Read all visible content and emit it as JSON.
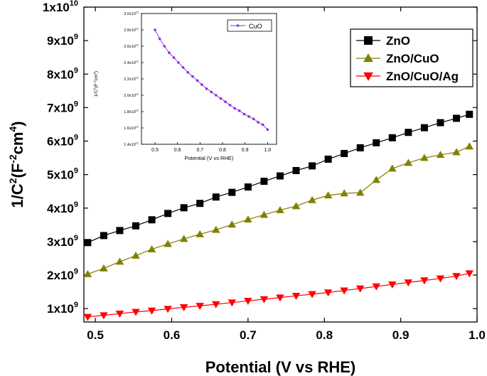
{
  "chart_data": [
    {
      "type": "line",
      "title": "",
      "xlabel": "Potential (V vs RHE)",
      "ylabel_parts": [
        "1/C",
        "2",
        "(F",
        "-2",
        "cm",
        "4",
        ")"
      ],
      "xlim": [
        0.485,
        1.0
      ],
      "ylim": [
        600000000.0,
        10000000000.0
      ],
      "xticks": [
        {
          "v": 0.5,
          "label": "0.5"
        },
        {
          "v": 0.6,
          "label": "0.6"
        },
        {
          "v": 0.7,
          "label": "0.7"
        },
        {
          "v": 0.8,
          "label": "0.8"
        },
        {
          "v": 0.9,
          "label": "0.9"
        },
        {
          "v": 1.0,
          "label": "1.0"
        }
      ],
      "yticks": [
        {
          "v": 1000000000.0,
          "mant": "1x10",
          "exp": "9"
        },
        {
          "v": 2000000000.0,
          "mant": "2x10",
          "exp": "9"
        },
        {
          "v": 3000000000.0,
          "mant": "3x10",
          "exp": "9"
        },
        {
          "v": 4000000000.0,
          "mant": "4x10",
          "exp": "9"
        },
        {
          "v": 5000000000.0,
          "mant": "5x10",
          "exp": "9"
        },
        {
          "v": 6000000000.0,
          "mant": "6x10",
          "exp": "9"
        },
        {
          "v": 7000000000.0,
          "mant": "7x10",
          "exp": "9"
        },
        {
          "v": 8000000000.0,
          "mant": "8x10",
          "exp": "9"
        },
        {
          "v": 9000000000.0,
          "mant": "9x10",
          "exp": "9"
        },
        {
          "v": 10000000000.0,
          "mant": "1x10",
          "exp": "10"
        }
      ],
      "x": [
        0.49,
        0.511,
        0.532,
        0.553,
        0.574,
        0.595,
        0.616,
        0.637,
        0.658,
        0.679,
        0.7,
        0.721,
        0.742,
        0.763,
        0.784,
        0.805,
        0.826,
        0.847,
        0.868,
        0.889,
        0.91,
        0.931,
        0.952,
        0.973,
        0.99
      ],
      "series": [
        {
          "name": "ZnO",
          "color": "#000000",
          "marker": "square",
          "values": [
            2970000000.0,
            3180000000.0,
            3330000000.0,
            3470000000.0,
            3650000000.0,
            3840000000.0,
            4010000000.0,
            4140000000.0,
            4330000000.0,
            4470000000.0,
            4630000000.0,
            4800000000.0,
            4960000000.0,
            5120000000.0,
            5260000000.0,
            5460000000.0,
            5630000000.0,
            5800000000.0,
            5950000000.0,
            6100000000.0,
            6260000000.0,
            6400000000.0,
            6550000000.0,
            6680000000.0,
            6800000000.0
          ]
        },
        {
          "name": "ZnO/CuO",
          "color": "#808000",
          "marker": "triangle-up",
          "values": [
            2030000000.0,
            2200000000.0,
            2400000000.0,
            2580000000.0,
            2770000000.0,
            2930000000.0,
            3080000000.0,
            3220000000.0,
            3350000000.0,
            3510000000.0,
            3660000000.0,
            3800000000.0,
            3940000000.0,
            4060000000.0,
            4240000000.0,
            4380000000.0,
            4440000000.0,
            4460000000.0,
            4840000000.0,
            5180000000.0,
            5350000000.0,
            5500000000.0,
            5590000000.0,
            5670000000.0,
            5840000000.0
          ]
        },
        {
          "name": "ZnO/CuO/Ag",
          "color": "#ff0000",
          "marker": "triangle-down",
          "values": [
            750000000.0,
            800000000.0,
            850000000.0,
            900000000.0,
            940000000.0,
            990000000.0,
            1040000000.0,
            1080000000.0,
            1130000000.0,
            1180000000.0,
            1230000000.0,
            1280000000.0,
            1330000000.0,
            1380000000.0,
            1430000000.0,
            1480000000.0,
            1540000000.0,
            1600000000.0,
            1660000000.0,
            1720000000.0,
            1780000000.0,
            1840000000.0,
            1900000000.0,
            1970000000.0,
            2050000000.0
          ]
        }
      ],
      "legend": {
        "placement": "top-right"
      }
    },
    {
      "type": "line",
      "title": "",
      "xlabel": "Potential (V vs RHE)",
      "ylabel_parts": [
        "1/C",
        "2",
        "(F",
        "-2",
        "cm",
        "4",
        ")"
      ],
      "xlim": [
        0.44,
        1.04
      ],
      "ylim": [
        1400000000000.0,
        3000000000000.0
      ],
      "xticks": [
        {
          "v": 0.5,
          "label": "0.5"
        },
        {
          "v": 0.6,
          "label": "0.6"
        },
        {
          "v": 0.7,
          "label": "0.7"
        },
        {
          "v": 0.8,
          "label": "0.8"
        },
        {
          "v": 0.9,
          "label": "0.9"
        },
        {
          "v": 1.0,
          "label": "1.0"
        }
      ],
      "yticks": [
        {
          "v": 1400000000000.0,
          "mant": "1.4x10",
          "exp": "12"
        },
        {
          "v": 1600000000000.0,
          "mant": "1.6x10",
          "exp": "12"
        },
        {
          "v": 1800000000000.0,
          "mant": "1.8x10",
          "exp": "12"
        },
        {
          "v": 2000000000000.0,
          "mant": "2.0x10",
          "exp": "12"
        },
        {
          "v": 2200000000000.0,
          "mant": "2.2x10",
          "exp": "12"
        },
        {
          "v": 2400000000000.0,
          "mant": "2.4x10",
          "exp": "12"
        },
        {
          "v": 2600000000000.0,
          "mant": "2.6x10",
          "exp": "12"
        },
        {
          "v": 2800000000000.0,
          "mant": "2.8x10",
          "exp": "12"
        },
        {
          "v": 3000000000000.0,
          "mant": "3.0x10",
          "exp": "12"
        }
      ],
      "x": [
        0.5,
        0.521,
        0.542,
        0.563,
        0.584,
        0.604,
        0.625,
        0.646,
        0.667,
        0.688,
        0.708,
        0.729,
        0.75,
        0.771,
        0.792,
        0.813,
        0.833,
        0.854,
        0.875,
        0.896,
        0.917,
        0.938,
        0.958,
        0.979,
        1.0
      ],
      "series": [
        {
          "name": "CuO",
          "color": "#8a2be2",
          "marker": "circle",
          "values": [
            2800000000000.0,
            2690000000000.0,
            2600000000000.0,
            2520000000000.0,
            2460000000000.0,
            2400000000000.0,
            2340000000000.0,
            2280000000000.0,
            2230000000000.0,
            2180000000000.0,
            2130000000000.0,
            2080000000000.0,
            2040000000000.0,
            2000000000000.0,
            1960000000000.0,
            1920000000000.0,
            1880000000000.0,
            1840000000000.0,
            1810000000000.0,
            1770000000000.0,
            1740000000000.0,
            1710000000000.0,
            1670000000000.0,
            1640000000000.0,
            1580000000000.0
          ]
        }
      ],
      "legend": {
        "placement": "top-right"
      }
    }
  ]
}
